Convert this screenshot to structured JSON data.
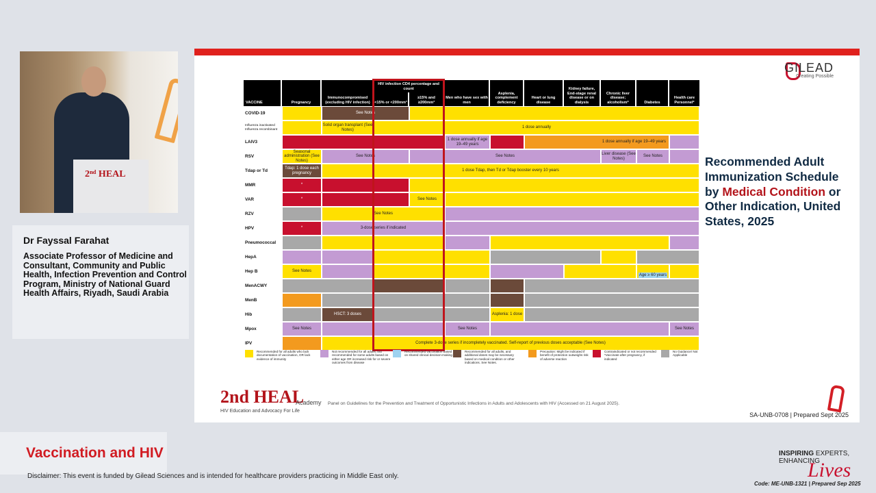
{
  "speaker": {
    "name": "Dr Fayssal Farahat",
    "title": "Associate Professor of Medicine and Consultant, Community and Public Health, Infection Prevention and Control Program, Ministry of National Guard Health Affairs, Riyadh, Saudi Arabia"
  },
  "talk_title": "Vaccination and HIV",
  "disclaimer": "Disclaimer: This event is funded by Gilead Sciences and is intended for healthcare providers practicing in Middle East only.",
  "brand": {
    "gilead_name": "GILEAD",
    "gilead_tag": "Creating Possible",
    "inspiring_1": "INSPIRING",
    "inspiring_2": "EXPERTS,",
    "inspiring_3": "ENHANCING",
    "lives": "Lives",
    "footer_code": "Code: ME-UNB-1321 | Prepared Sep 2025",
    "heal_main": "2nd HEAL",
    "heal_academy": "Academy",
    "heal_sub": "HIV Education and Advocacy For Life",
    "red": "#d11b22"
  },
  "slide": {
    "title_1": "Recommended Adult Immunization Schedule by",
    "title_hl": "Medical Condition",
    "title_2": "or Other Indication, United States, 2025",
    "source": "Panel on Guidelines for the Prevention and Treatment of Opportunistic Infections in Adults and Adolescents with HIV (Accessed on 21 August 2025).",
    "code": "SA-UNB-0708 | Prepared Sept 2025",
    "headers": [
      "VACCINE",
      "Pregnancy",
      "Immunocompromised (excluding HIV infection)",
      "HIV infection CD4 percentage and count",
      "<15% or <200mm³",
      "≥15% and ≥200mm³",
      "Men who have sex with men",
      "Asplenia, complement deficiency",
      "Heart or lung disease",
      "Kidney failure, End-stage renal disease or on dialysis",
      "Chronic liver disease; alcoholism*",
      "Diabetes",
      "Health care Personnel*"
    ],
    "rows": [
      "COVID-19",
      "Influenza inactivated Influenza recombinant",
      "LAIV3",
      "RSV",
      "Tdap or Td",
      "MMR",
      "VAR",
      "RZV",
      "HPV",
      "Pneumococcal",
      "HepA",
      "Hep B",
      "MenACWY",
      "MenB",
      "Hib",
      "Mpox",
      "IPV"
    ],
    "cell_text": {
      "see_notes": "See Notes",
      "solid_organ": "Solid organ transplant (See Notes)",
      "dose_annually": "1 dose annually",
      "laiv_msm": "1 dose annually if age 19–49 years",
      "laiv_right": "1 dose annually if age 19–49 years",
      "rsv_preg": "Seasonal administration (See Notes)",
      "liver": "Liver disease (See Notes)",
      "tdap_preg": "Tdap: 1 dose each pregnancy",
      "tdap_main": "1 dose Tdap, then Td or Tdap booster every 10 years",
      "star": "*",
      "hpv": "3-dose series if indicated",
      "hepb_age": "Age ≥ 60 years",
      "hsct": "HSCT: 3 doses",
      "asplenia": "Asplenia: 1 dose",
      "ipv": "Complete 3-dose series if incompletely vaccinated. Self-report of previous doses acceptable (See Notes)"
    },
    "legend": [
      {
        "color": "#ffe000",
        "text": "Recommended for all adults who lack documentation of vaccination, OR lack evidence of immunity"
      },
      {
        "color": "#c39bd3",
        "text": "Not recommended for all adults, but recommended for some adults based on either age OR increased risk for or severe outcomes from disease"
      },
      {
        "color": "#9fd3f0",
        "text": "Recommended vaccination based on shared clinical decision-making"
      },
      {
        "color": "#6b4a3a",
        "text": "Recommended for all adults, and additional doses may be necessary based on medical condition or other indications. See Notes."
      },
      {
        "color": "#f39a1e",
        "text": "Precaution: Might be indicated if benefit of protection outweighs risk of adverse reaction"
      },
      {
        "color": "#c8102e",
        "text": "Contraindicated or not recommended *Vaccinate after pregnancy, if indicated"
      },
      {
        "color": "#a8a8a8",
        "text": "No Guidance/ Not Applicable"
      }
    ]
  }
}
